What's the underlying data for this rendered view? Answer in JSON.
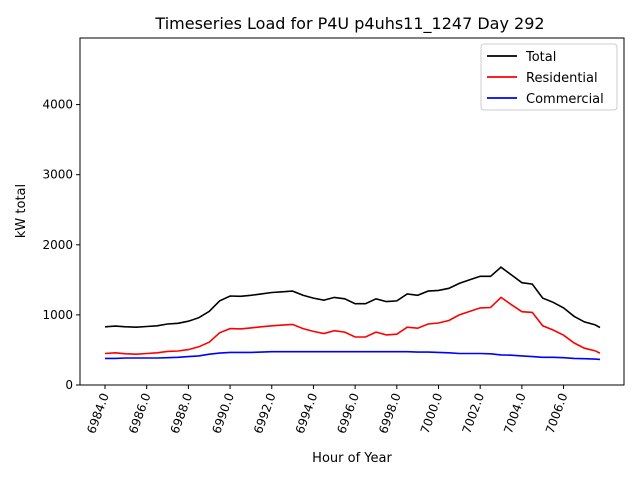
{
  "chart_data": {
    "type": "line",
    "title": "Timeseries Load for P4U p4uhs11_1247  Day 292",
    "xlabel": "Hour of Year",
    "ylabel": "kW total",
    "xlim": [
      6982.8,
      7008.9
    ],
    "ylim": [
      0,
      4950
    ],
    "grid": false,
    "legend_position": "top-right",
    "x_ticks": [
      6984,
      6986,
      6988,
      6990,
      6992,
      6994,
      6996,
      6998,
      7000,
      7002,
      7004,
      7006
    ],
    "x_tick_labels": [
      "6984.0",
      "6986.0",
      "6988.0",
      "6990.0",
      "6992.0",
      "6994.0",
      "6996.0",
      "6998.0",
      "7000.0",
      "7002.0",
      "7004.0",
      "7006.0"
    ],
    "y_ticks": [
      0,
      1000,
      2000,
      3000,
      4000
    ],
    "y_tick_labels": [
      "0",
      "1000",
      "2000",
      "3000",
      "4000"
    ],
    "x": [
      6984,
      6984.5,
      6985,
      6985.5,
      6986,
      6986.5,
      6987,
      6987.5,
      6988,
      6988.5,
      6989,
      6989.5,
      6990,
      6990.5,
      6991,
      6991.5,
      6992,
      6992.5,
      6993,
      6993.5,
      6994,
      6994.5,
      6995,
      6995.5,
      6996,
      6996.5,
      6997,
      6997.5,
      6998,
      6998.5,
      6999,
      6999.5,
      7000,
      7000.5,
      7001,
      7001.5,
      7002,
      7002.5,
      7003,
      7003.5,
      7004,
      7004.5,
      7005,
      7005.5,
      7006,
      7006.5,
      7007,
      7007.5,
      7007.75
    ],
    "series": [
      {
        "name": "Total",
        "color": "#000000",
        "values": [
          830,
          840,
          830,
          825,
          835,
          845,
          870,
          880,
          910,
          960,
          1050,
          1200,
          1270,
          1265,
          1280,
          1300,
          1320,
          1330,
          1340,
          1280,
          1240,
          1210,
          1250,
          1230,
          1160,
          1160,
          1230,
          1190,
          1200,
          1300,
          1280,
          1340,
          1350,
          1380,
          1450,
          1500,
          1550,
          1550,
          1680,
          1570,
          1460,
          1440,
          1240,
          1180,
          1100,
          980,
          900,
          860,
          820
        ]
      },
      {
        "name": "Residential",
        "color": "#ff0000",
        "values": [
          450,
          460,
          445,
          440,
          450,
          460,
          480,
          485,
          505,
          545,
          610,
          745,
          805,
          800,
          815,
          830,
          845,
          855,
          865,
          805,
          765,
          735,
          775,
          755,
          685,
          685,
          755,
          715,
          725,
          825,
          810,
          870,
          885,
          920,
          1000,
          1050,
          1100,
          1105,
          1250,
          1145,
          1045,
          1035,
          845,
          785,
          710,
          600,
          525,
          490,
          455
        ]
      },
      {
        "name": "Commercial",
        "color": "#0000ff",
        "values": [
          380,
          380,
          385,
          385,
          385,
          385,
          390,
          395,
          405,
          415,
          440,
          455,
          465,
          465,
          465,
          470,
          475,
          475,
          475,
          475,
          475,
          475,
          475,
          475,
          475,
          475,
          475,
          475,
          475,
          475,
          470,
          470,
          465,
          460,
          450,
          450,
          450,
          445,
          430,
          425,
          415,
          405,
          395,
          395,
          390,
          380,
          375,
          370,
          365
        ]
      }
    ]
  }
}
